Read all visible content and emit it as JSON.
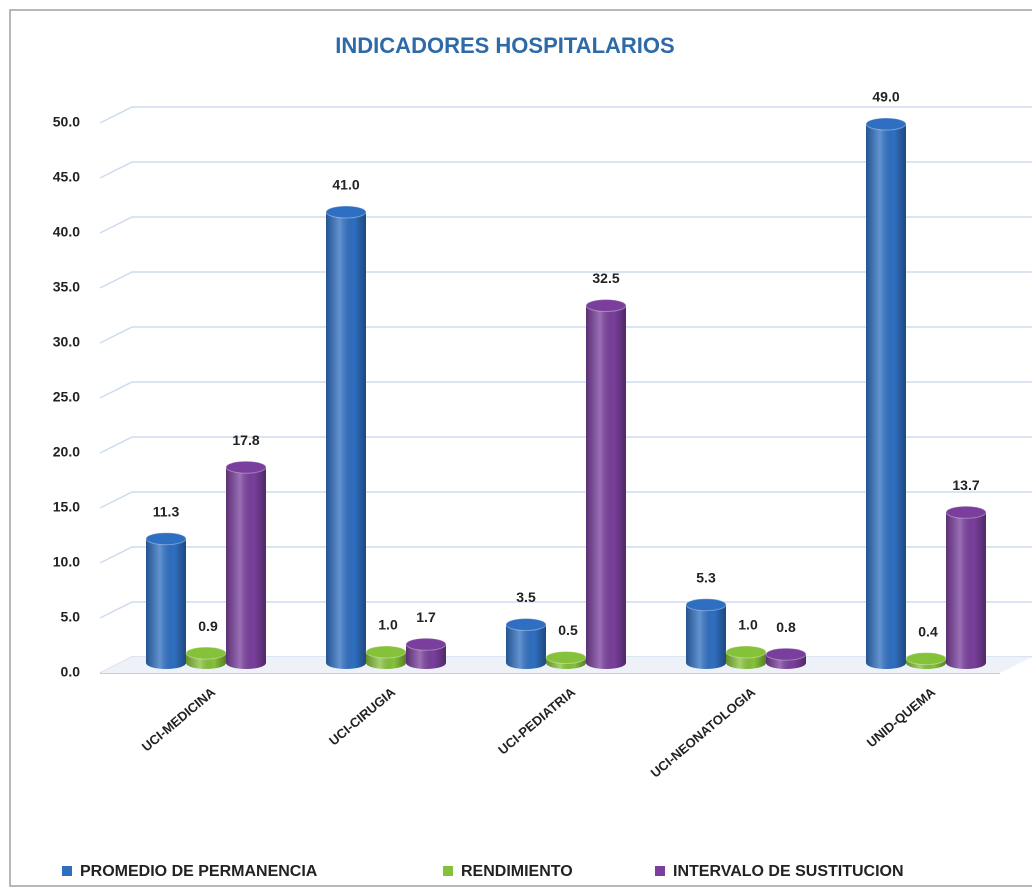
{
  "chart_data": {
    "type": "bar",
    "title": "INDICADORES HOSPITALARIOS",
    "categories": [
      "UCI-MEDICINA",
      "UCI-CIRUGIA",
      "UCI-PEDIATRIA",
      "UCI-NEONATOLOGIA",
      "UNID-QUEMA"
    ],
    "series": [
      {
        "name": "PROMEDIO DE PERMANENCIA",
        "color": "#2f6fc1",
        "values": [
          11.3,
          41.0,
          3.5,
          5.3,
          49.0
        ],
        "value_labels": [
          "11.3",
          "41.0",
          "3.5",
          "5.3",
          "49.0"
        ]
      },
      {
        "name": "RENDIMIENTO",
        "color": "#86c13a",
        "values": [
          0.9,
          1.0,
          0.5,
          1.0,
          0.4
        ],
        "value_labels": [
          "0.9",
          "1.0",
          "0.5",
          "1.0",
          "0.4"
        ]
      },
      {
        "name": "INTERVALO DE SUSTITUCION",
        "color": "#7a3f9c",
        "values": [
          17.8,
          1.7,
          32.5,
          0.8,
          13.7
        ],
        "value_labels": [
          "17.8",
          "1.7",
          "32.5",
          "0.8",
          "13.7"
        ]
      }
    ],
    "ylim": [
      0,
      50
    ],
    "yticks": [
      {
        "value": 0,
        "label": "0.0"
      },
      {
        "value": 5,
        "label": "5.0"
      },
      {
        "value": 10,
        "label": "10.0"
      },
      {
        "value": 15,
        "label": "15.0"
      },
      {
        "value": 20,
        "label": "20.0"
      },
      {
        "value": 25,
        "label": "25.0"
      },
      {
        "value": 30,
        "label": "30.0"
      },
      {
        "value": 35,
        "label": "35.0"
      },
      {
        "value": 40,
        "label": "40.0"
      },
      {
        "value": 45,
        "label": "45.0"
      },
      {
        "value": 50,
        "label": "50.0"
      }
    ],
    "grid": true,
    "legend": "bottom"
  }
}
